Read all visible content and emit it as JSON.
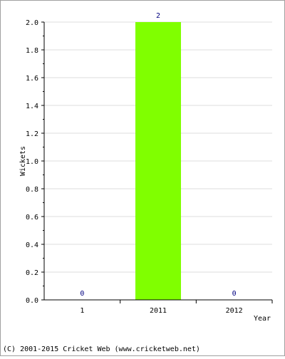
{
  "chart_data": {
    "type": "bar",
    "categories": [
      "1",
      "2011",
      "2012"
    ],
    "values": [
      0,
      2,
      0
    ],
    "data_labels": [
      "0",
      "2",
      "0"
    ],
    "xlabel": "Year",
    "ylabel": "Wickets",
    "ylim": [
      0,
      2.0
    ],
    "yticks": [
      "0.0",
      "0.2",
      "0.4",
      "0.6",
      "0.8",
      "1.0",
      "1.2",
      "1.4",
      "1.6",
      "1.8",
      "2.0"
    ],
    "grid": true,
    "bar_color": "#80ff00",
    "label_color": "#000080"
  },
  "footer": {
    "copyright": "(C) 2001-2015 Cricket Web (www.cricketweb.net)"
  }
}
